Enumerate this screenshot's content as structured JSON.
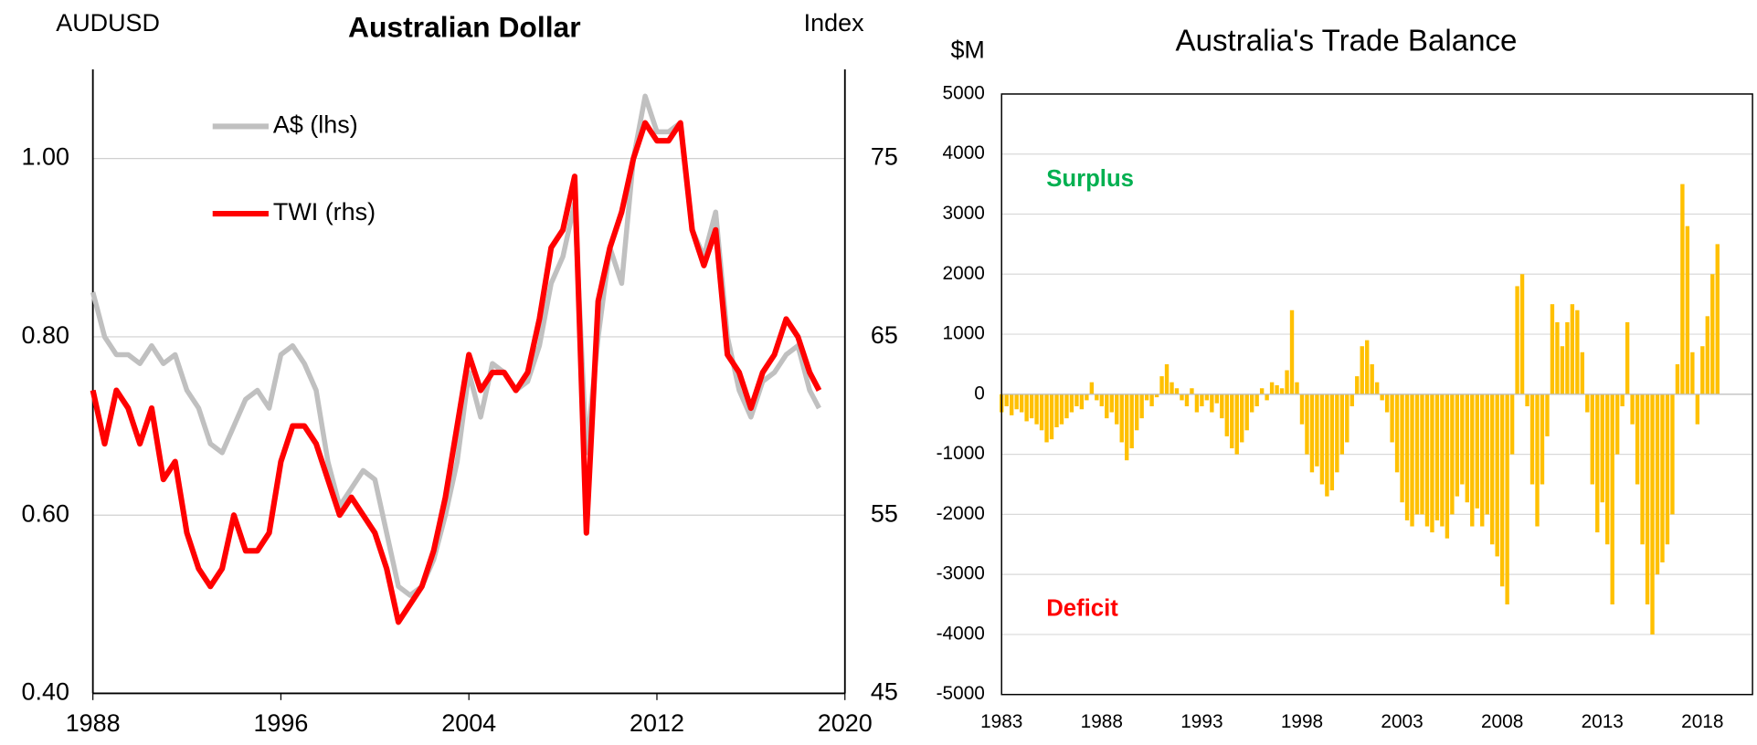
{
  "chart_data": [
    {
      "type": "line",
      "title": "Australian Dollar",
      "ylabel": "AUDUSD",
      "y2label": "Index",
      "x": [
        1988,
        1988.5,
        1989,
        1989.5,
        1990,
        1990.5,
        1991,
        1991.5,
        1992,
        1992.5,
        1993,
        1993.5,
        1994,
        1994.5,
        1995,
        1995.5,
        1996,
        1996.5,
        1997,
        1997.5,
        1998,
        1998.5,
        1999,
        1999.5,
        2000,
        2000.5,
        2001,
        2001.5,
        2002,
        2002.5,
        2003,
        2003.5,
        2004,
        2004.5,
        2005,
        2005.5,
        2006,
        2006.5,
        2007,
        2007.5,
        2008,
        2008.5,
        2009,
        2009.5,
        2010,
        2010.5,
        2011,
        2011.5,
        2012,
        2012.5,
        2013,
        2013.5,
        2014,
        2014.5,
        2015,
        2015.5,
        2016,
        2016.5,
        2017,
        2017.5,
        2018,
        2018.5,
        2018.9
      ],
      "series": [
        {
          "name": "A$ (lhs)",
          "color": "#c0c0c0",
          "values": [
            0.85,
            0.8,
            0.78,
            0.78,
            0.77,
            0.79,
            0.77,
            0.78,
            0.74,
            0.72,
            0.68,
            0.67,
            0.7,
            0.73,
            0.74,
            0.72,
            0.78,
            0.79,
            0.77,
            0.74,
            0.66,
            0.61,
            0.63,
            0.65,
            0.64,
            0.58,
            0.52,
            0.51,
            0.52,
            0.55,
            0.6,
            0.66,
            0.76,
            0.71,
            0.77,
            0.76,
            0.74,
            0.75,
            0.79,
            0.86,
            0.89,
            0.95,
            0.67,
            0.8,
            0.9,
            0.86,
            1.0,
            1.07,
            1.03,
            1.03,
            1.04,
            0.92,
            0.89,
            0.94,
            0.8,
            0.74,
            0.71,
            0.75,
            0.76,
            0.78,
            0.79,
            0.74,
            0.72
          ]
        },
        {
          "name": "TWI (rhs)",
          "color": "#ff0000",
          "axis": "y2",
          "values": [
            62,
            59,
            62,
            61,
            59,
            61,
            57,
            58,
            54,
            52,
            51,
            52,
            55,
            53,
            53,
            54,
            58,
            60,
            60,
            59,
            57,
            55,
            56,
            55,
            54,
            52,
            49,
            50,
            51,
            53,
            56,
            60,
            64,
            62,
            63,
            63,
            62,
            63,
            66,
            70,
            71,
            74,
            54,
            67,
            70,
            72,
            75,
            77,
            76,
            76,
            77,
            71,
            69,
            71,
            64,
            63,
            61,
            63,
            64,
            66,
            65,
            63,
            62
          ]
        }
      ],
      "xlim": [
        1988,
        2020
      ],
      "xticks": [
        1988,
        1996,
        2004,
        2012,
        2020
      ],
      "ylim": [
        0.4,
        1.1
      ],
      "yticks": [
        {
          "value": 0.4,
          "label": "0.40"
        },
        {
          "value": 0.6,
          "label": "0.60"
        },
        {
          "value": 0.8,
          "label": "0.80"
        },
        {
          "value": 1,
          "label": "1.00"
        }
      ],
      "y2lim": [
        45,
        80
      ],
      "y2ticks": [
        45,
        55,
        65,
        75
      ],
      "grid": true,
      "legend": "upper left"
    },
    {
      "type": "bar",
      "title": "Australia's Trade Balance",
      "ylabel": "$M",
      "color": "#ffc000",
      "x": [
        1983,
        1983.25,
        1983.5,
        1983.75,
        1984,
        1984.25,
        1984.5,
        1984.75,
        1985,
        1985.25,
        1985.5,
        1985.75,
        1986,
        1986.25,
        1986.5,
        1986.75,
        1987,
        1987.25,
        1987.5,
        1987.75,
        1988,
        1988.25,
        1988.5,
        1988.75,
        1989,
        1989.25,
        1989.5,
        1989.75,
        1990,
        1990.25,
        1990.5,
        1990.75,
        1991,
        1991.25,
        1991.5,
        1991.75,
        1992,
        1992.25,
        1992.5,
        1992.75,
        1993,
        1993.25,
        1993.5,
        1993.75,
        1994,
        1994.25,
        1994.5,
        1994.75,
        1995,
        1995.25,
        1995.5,
        1995.75,
        1996,
        1996.25,
        1996.5,
        1996.75,
        1997,
        1997.25,
        1997.5,
        1997.75,
        1998,
        1998.25,
        1998.5,
        1998.75,
        1999,
        1999.25,
        1999.5,
        1999.75,
        2000,
        2000.25,
        2000.5,
        2000.75,
        2001,
        2001.25,
        2001.5,
        2001.75,
        2002,
        2002.25,
        2002.5,
        2002.75,
        2003,
        2003.25,
        2003.5,
        2003.75,
        2004,
        2004.25,
        2004.5,
        2004.75,
        2005,
        2005.25,
        2005.5,
        2005.75,
        2006,
        2006.25,
        2006.5,
        2006.75,
        2007,
        2007.25,
        2007.5,
        2007.75,
        2008,
        2008.25,
        2008.5,
        2008.75,
        2009,
        2009.25,
        2009.5,
        2009.75,
        2010,
        2010.25,
        2010.5,
        2010.75,
        2011,
        2011.25,
        2011.5,
        2011.75,
        2012,
        2012.25,
        2012.5,
        2012.75,
        2013,
        2013.25,
        2013.5,
        2013.75,
        2014,
        2014.25,
        2014.5,
        2014.75,
        2015,
        2015.25,
        2015.5,
        2015.75,
        2016,
        2016.25,
        2016.5,
        2016.75,
        2017,
        2017.25,
        2017.5,
        2017.75,
        2018,
        2018.25,
        2018.5,
        2018.75
      ],
      "values": [
        -300,
        -200,
        -350,
        -250,
        -300,
        -450,
        -400,
        -500,
        -600,
        -800,
        -750,
        -550,
        -500,
        -400,
        -300,
        -200,
        -250,
        -100,
        200,
        -100,
        -200,
        -400,
        -300,
        -500,
        -800,
        -1100,
        -900,
        -600,
        -400,
        -100,
        -200,
        -50,
        300,
        500,
        200,
        100,
        -100,
        -200,
        100,
        -300,
        -200,
        -100,
        -300,
        -150,
        -400,
        -700,
        -900,
        -1000,
        -800,
        -600,
        -300,
        -200,
        100,
        -100,
        200,
        150,
        100,
        400,
        1400,
        200,
        -500,
        -1000,
        -1300,
        -1200,
        -1500,
        -1700,
        -1600,
        -1300,
        -1000,
        -800,
        -200,
        300,
        800,
        900,
        500,
        200,
        -100,
        -300,
        -800,
        -1300,
        -1800,
        -2100,
        -2200,
        -2000,
        -2000,
        -2200,
        -2300,
        -2100,
        -2200,
        -2400,
        -2000,
        -1700,
        -1500,
        -1800,
        -2200,
        -1900,
        -2200,
        -2000,
        -2500,
        -2700,
        -3200,
        -3500,
        -1000,
        1800,
        2000,
        -200,
        -1500,
        -2200,
        -1500,
        -700,
        1500,
        1200,
        800,
        1200,
        1500,
        1400,
        700,
        -300,
        -1500,
        -2300,
        -1800,
        -2500,
        -3500,
        -1000,
        -200,
        1200,
        -500,
        -1500,
        -2500,
        -3500,
        -4000,
        -3000,
        -2800,
        -2500,
        -2000,
        500,
        3500,
        2800,
        700,
        -500,
        800,
        1300,
        2000,
        2500
      ],
      "xlim": [
        1983,
        2020.5
      ],
      "xticks": [
        1983,
        1988,
        1993,
        1998,
        2003,
        2008,
        2013,
        2018
      ],
      "ylim": [
        -5000,
        5000
      ],
      "yticks": [
        -5000,
        -4000,
        -3000,
        -2000,
        -1000,
        0,
        1000,
        2000,
        3000,
        4000,
        5000
      ],
      "grid": true,
      "annotations": [
        {
          "text": "Surplus",
          "color": "#00b050"
        },
        {
          "text": "Deficit",
          "color": "#ff0000"
        }
      ]
    }
  ]
}
